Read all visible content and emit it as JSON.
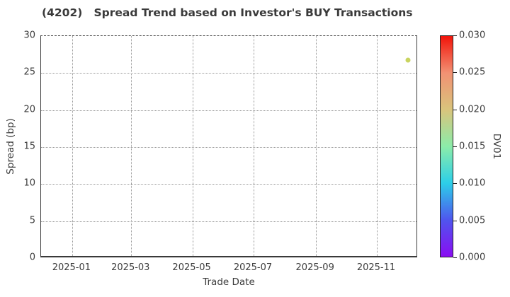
{
  "figure": {
    "background": "#ffffff",
    "text_color": "#3a3a3a",
    "grid_color": "#979797",
    "spine_color": "#3a3a3a"
  },
  "chart_data": {
    "type": "scatter",
    "title": "(4202)   Spread Trend based on Investor's BUY Transactions",
    "xlabel": "Trade Date",
    "ylabel": "Spread (bp)",
    "xlim": [
      "2024-12-01",
      "2025-12-12"
    ],
    "ylim": [
      0,
      30
    ],
    "x_ticks": [
      {
        "label": "2025-01",
        "date": "2025-01-01"
      },
      {
        "label": "2025-03",
        "date": "2025-03-01"
      },
      {
        "label": "2025-05",
        "date": "2025-05-01"
      },
      {
        "label": "2025-07",
        "date": "2025-07-01"
      },
      {
        "label": "2025-09",
        "date": "2025-09-01"
      },
      {
        "label": "2025-11",
        "date": "2025-11-01"
      }
    ],
    "y_ticks": [
      0,
      5,
      10,
      15,
      20,
      25,
      30
    ],
    "grid": true,
    "grid_style": "dotted",
    "points": [
      {
        "date": "2025-12-02",
        "spread_bp": 26.8,
        "dv01": 0.018,
        "color": "#c9d45f"
      }
    ],
    "colorbar": {
      "label": "DV01",
      "min": 0.0,
      "max": 0.03,
      "ticks": [
        "0.000",
        "0.005",
        "0.010",
        "0.015",
        "0.020",
        "0.025",
        "0.030"
      ],
      "colormap": "rainbow",
      "gradient_stops": [
        {
          "pos": 0.0,
          "color": "#8a0df2"
        },
        {
          "pos": 0.1667,
          "color": "#4f55ee"
        },
        {
          "pos": 0.3333,
          "color": "#2ccfe8"
        },
        {
          "pos": 0.5,
          "color": "#8ceca9"
        },
        {
          "pos": 0.6667,
          "color": "#d9c47c"
        },
        {
          "pos": 0.8333,
          "color": "#f29173"
        },
        {
          "pos": 1.0,
          "color": "#f2140a"
        }
      ]
    }
  }
}
